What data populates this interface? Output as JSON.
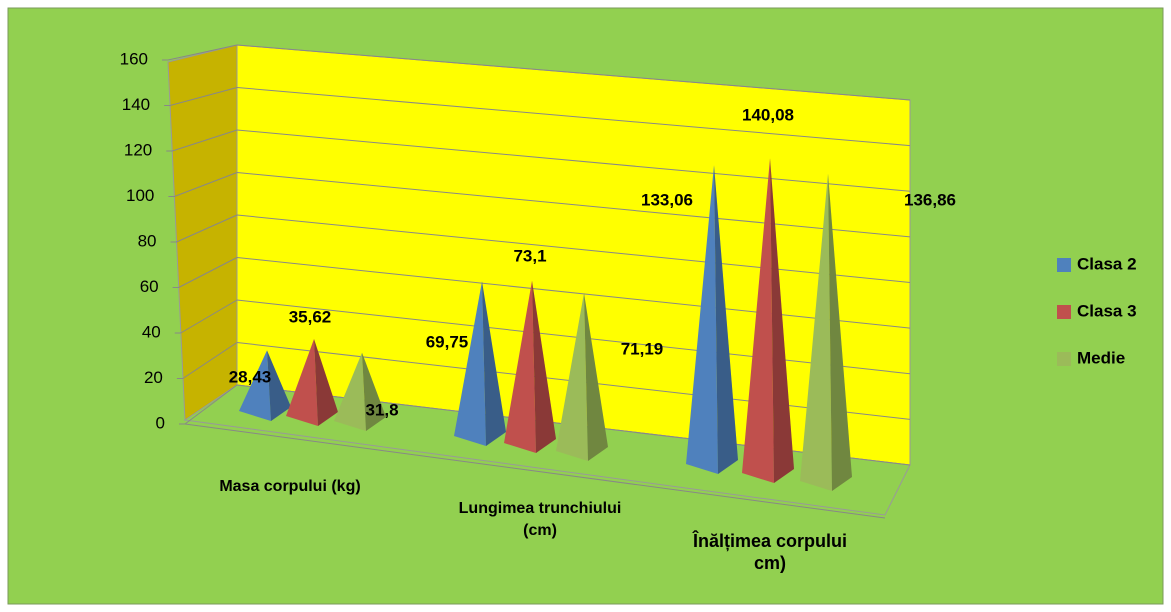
{
  "chart_data": {
    "type": "pyramid3d",
    "categories": [
      "Masa corpului (kg)",
      "Lungimea trunchiului  (cm)",
      "Înălțimea corpului  cm)"
    ],
    "series": [
      {
        "name": "Clasa 2",
        "color": "#4f81bd",
        "values": [
          28.43,
          69.75,
          133.06
        ],
        "value_labels": [
          "28,43",
          "69,75",
          "133,06"
        ]
      },
      {
        "name": "Clasa 3",
        "color": "#c0504d",
        "values": [
          35.62,
          73.1,
          140.08
        ],
        "value_labels": [
          "35,62",
          "73,1",
          "140,08"
        ]
      },
      {
        "name": "Medie",
        "color": "#9bbb59",
        "values": [
          31.8,
          71.19,
          136.86
        ],
        "value_labels": [
          "31,8",
          "71,19",
          "136,86"
        ]
      }
    ],
    "ylim": [
      0,
      160
    ],
    "yticks": [
      0,
      20,
      40,
      60,
      80,
      100,
      120,
      140,
      160
    ],
    "grid": true,
    "legend": "right"
  }
}
